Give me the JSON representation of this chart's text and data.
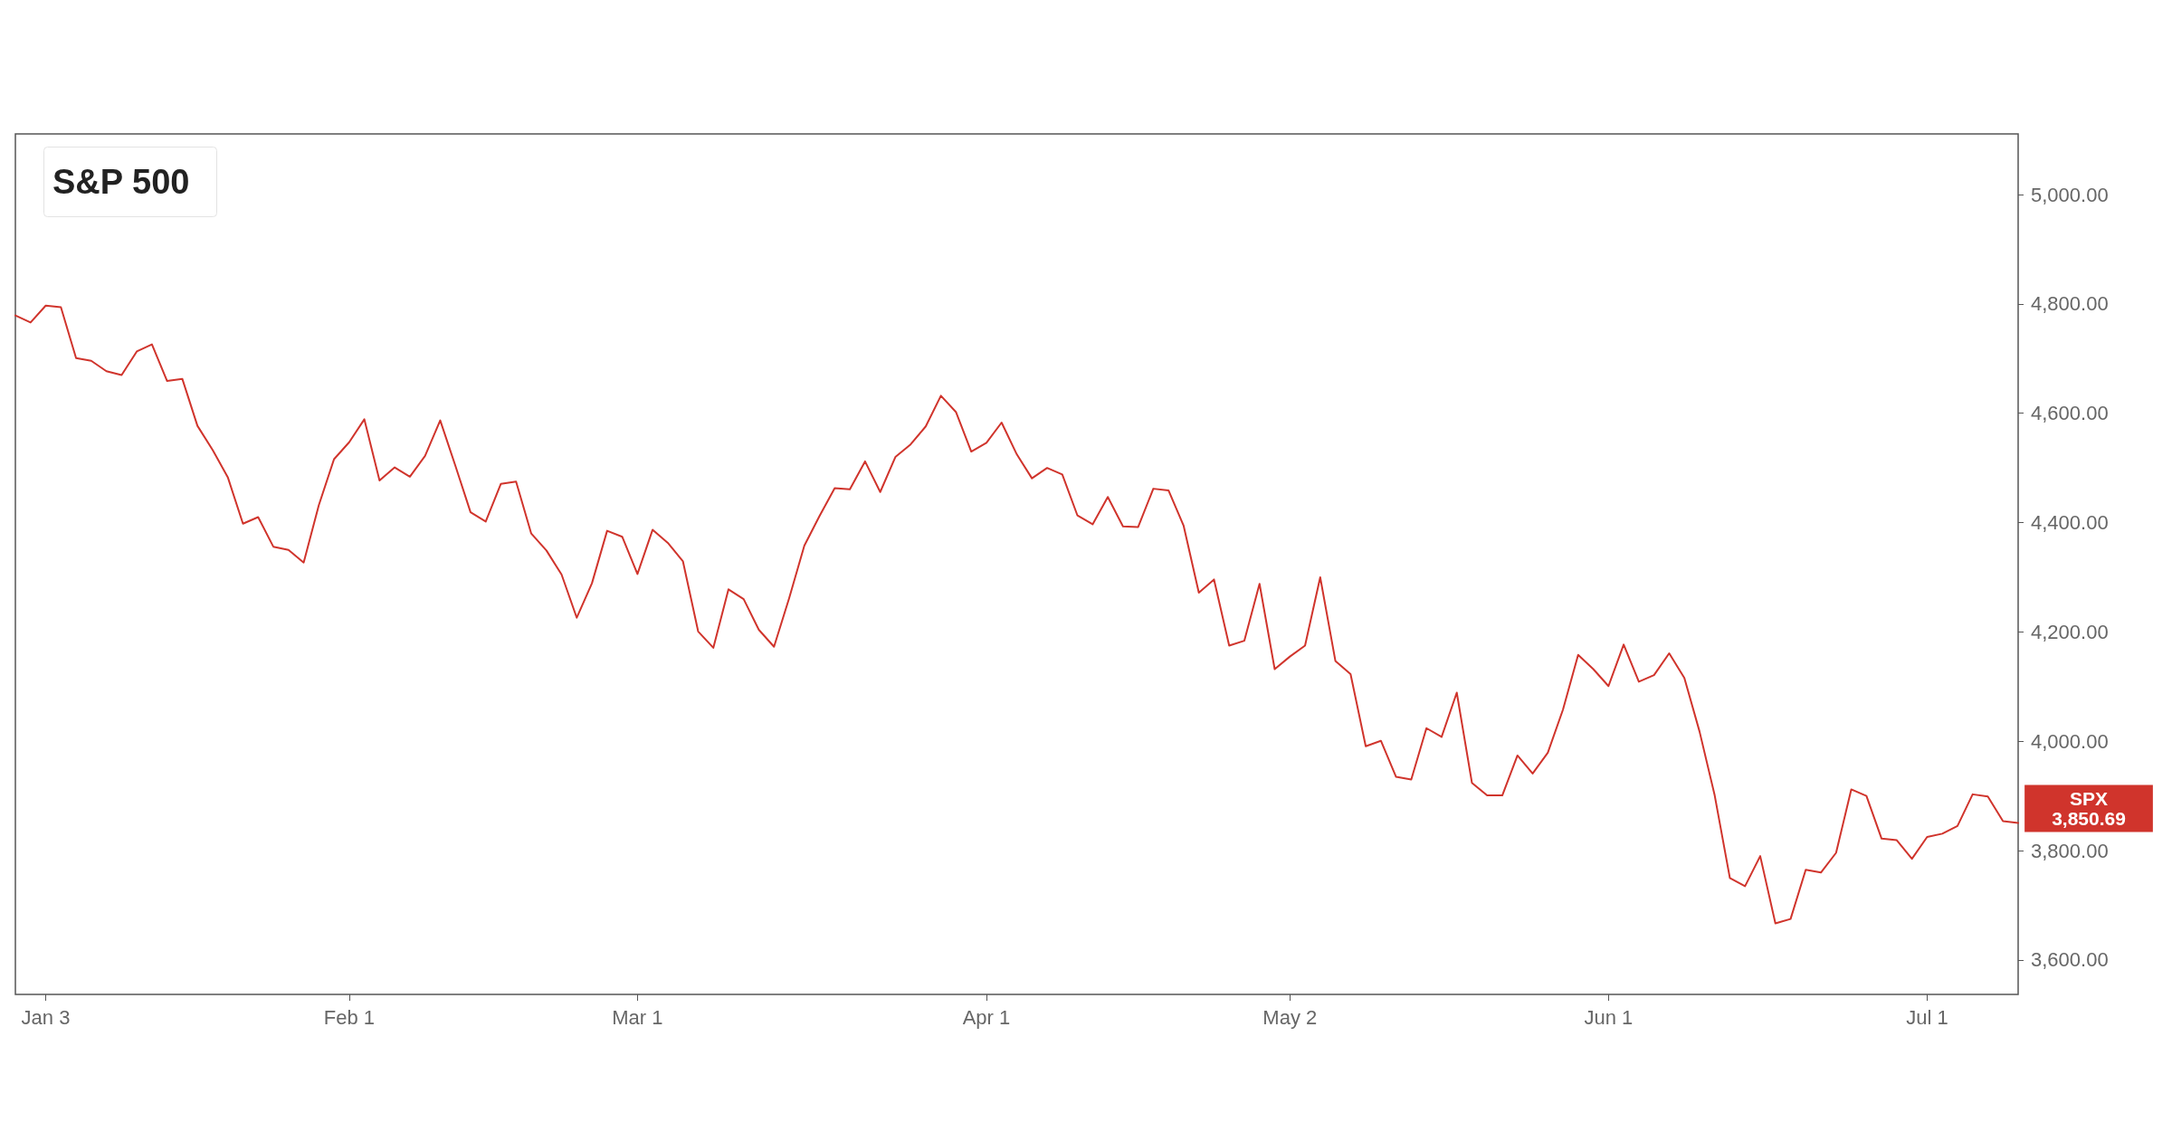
{
  "chart_data": {
    "type": "line",
    "title": "S&P 500",
    "categories": [
      null,
      null,
      "Jan 3",
      null,
      null,
      null,
      null,
      null,
      null,
      null,
      null,
      null,
      null,
      null,
      null,
      null,
      null,
      null,
      null,
      null,
      null,
      null,
      "Feb 1",
      null,
      null,
      null,
      null,
      null,
      null,
      null,
      null,
      null,
      null,
      null,
      null,
      null,
      null,
      null,
      null,
      null,
      null,
      "Mar 1",
      null,
      null,
      null,
      null,
      null,
      null,
      null,
      null,
      null,
      null,
      null,
      null,
      null,
      null,
      null,
      null,
      null,
      null,
      null,
      null,
      null,
      null,
      "Apr 1",
      null,
      null,
      null,
      null,
      null,
      null,
      null,
      null,
      null,
      null,
      null,
      null,
      null,
      null,
      null,
      null,
      null,
      null,
      null,
      "May 2",
      null,
      null,
      null,
      null,
      null,
      null,
      null,
      null,
      null,
      null,
      null,
      null,
      null,
      null,
      null,
      null,
      null,
      null,
      null,
      null,
      "Jun 1",
      null,
      null,
      null,
      null,
      null,
      null,
      null,
      null,
      null,
      null,
      null,
      null,
      null,
      null,
      null,
      null,
      null,
      null,
      null,
      null,
      "Jul 1",
      null,
      null,
      null,
      null,
      null,
      null
    ],
    "series": [
      {
        "color": "#d0342c",
        "values": [
          4779,
          4766,
          4797,
          4794,
          4701,
          4696,
          4677,
          4670,
          4713,
          4726,
          4659,
          4663,
          4577,
          4533,
          4483,
          4398,
          4410,
          4356,
          4350,
          4327,
          4432,
          4516,
          4547,
          4589,
          4477,
          4501,
          4484,
          4522,
          4587,
          4504,
          4419,
          4402,
          4471,
          4475,
          4380,
          4349,
          4305,
          4226,
          4289,
          4385,
          4374,
          4306,
          4387,
          4363,
          4329,
          4201,
          4171,
          4278,
          4260,
          4204,
          4173,
          4262,
          4358,
          4412,
          4463,
          4461,
          4512,
          4456,
          4520,
          4543,
          4576,
          4632,
          4602,
          4530,
          4546,
          4583,
          4525,
          4481,
          4500,
          4488,
          4413,
          4397,
          4447,
          4393,
          4392,
          4462,
          4459,
          4394,
          4272,
          4296,
          4175,
          4184,
          4288,
          4132,
          4155,
          4175,
          4300,
          4147,
          4123,
          3991,
          4001,
          3935,
          3930,
          4024,
          4008,
          4089,
          3924,
          3901,
          3901,
          3974,
          3941,
          3979,
          4058,
          4158,
          4132,
          4101,
          4177,
          4109,
          4121,
          4161,
          4116,
          4018,
          3901,
          3750,
          3735,
          3790,
          3667,
          3675,
          3765,
          3760,
          3796,
          3912,
          3900,
          3822,
          3819,
          3785,
          3825,
          3831,
          3845,
          3903,
          3899,
          3854,
          3850.69
        ]
      }
    ],
    "ylim": [
      3537,
      5111
    ],
    "yticks": [
      {
        "value": 3600,
        "label": "3,600.00"
      },
      {
        "value": 3800,
        "label": "3,800.00"
      },
      {
        "value": 4000,
        "label": "4,000.00"
      },
      {
        "value": 4200,
        "label": "4,200.00"
      },
      {
        "value": 4400,
        "label": "4,400.00"
      },
      {
        "value": 4600,
        "label": "4,600.00"
      },
      {
        "value": 4800,
        "label": "4,800.00"
      },
      {
        "value": 5000,
        "label": "5,000.00"
      }
    ],
    "annotations": [
      "SPX\n3,850.69"
    ],
    "grid": false,
    "marker": "none",
    "line_style": "solid"
  }
}
